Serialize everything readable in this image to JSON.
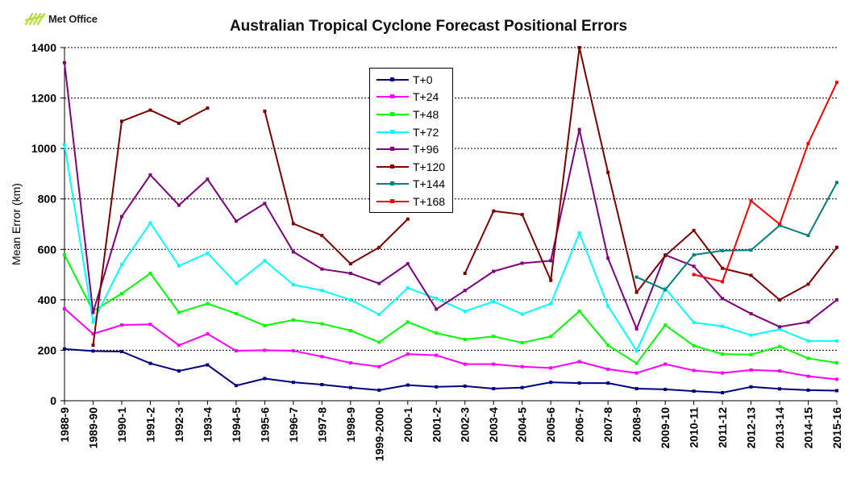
{
  "logo": {
    "text": "Met Office",
    "icon": "met-office-logo-icon",
    "color": "#b5e033"
  },
  "chart_data": {
    "type": "line",
    "title": "Australian Tropical Cyclone Forecast Positional Errors",
    "xlabel": "",
    "ylabel": "Mean Error (km)",
    "ylim": [
      0,
      1400
    ],
    "yticks": [
      "0",
      "200",
      "400",
      "600",
      "800",
      "1000",
      "1200",
      "1400"
    ],
    "grid": "horizontal dashed",
    "legend_position": "top-center",
    "categories": [
      "1988-9",
      "1989-90",
      "1990-1",
      "1991-2",
      "1992-3",
      "1993-4",
      "1994-5",
      "1995-6",
      "1996-7",
      "1997-8",
      "1998-9",
      "1999-2000",
      "2000-1",
      "2001-2",
      "2002-3",
      "2003-4",
      "2004-5",
      "2005-6",
      "2006-7",
      "2007-8",
      "2008-9",
      "2009-10",
      "2010-11",
      "2011-12",
      "2012-13",
      "2013-14",
      "2014-15",
      "2015-16"
    ],
    "series": [
      {
        "name": "T+0",
        "color": "#000080",
        "values": [
          205,
          197,
          195,
          148,
          118,
          142,
          60,
          88,
          73,
          64,
          52,
          42,
          62,
          55,
          58,
          48,
          52,
          73,
          70,
          70,
          48,
          45,
          38,
          32,
          55,
          47,
          42,
          40
        ]
      },
      {
        "name": "T+24",
        "color": "#ff00ff",
        "values": [
          365,
          265,
          300,
          303,
          220,
          265,
          198,
          200,
          198,
          175,
          150,
          135,
          185,
          180,
          145,
          145,
          135,
          130,
          155,
          125,
          110,
          145,
          120,
          110,
          122,
          118,
          97,
          85
        ]
      },
      {
        "name": "T+48",
        "color": "#00ff00",
        "values": [
          578,
          355,
          425,
          505,
          350,
          385,
          345,
          298,
          320,
          305,
          278,
          232,
          312,
          268,
          243,
          255,
          230,
          255,
          355,
          220,
          148,
          300,
          218,
          185,
          183,
          215,
          168,
          150
        ]
      },
      {
        "name": "T+72",
        "color": "#00ffff",
        "values": [
          1015,
          312,
          540,
          705,
          535,
          585,
          465,
          555,
          460,
          437,
          400,
          342,
          447,
          405,
          355,
          393,
          343,
          385,
          665,
          375,
          198,
          445,
          310,
          295,
          260,
          283,
          237,
          237
        ]
      },
      {
        "name": "T+96",
        "color": "#800080",
        "values": [
          1340,
          350,
          730,
          895,
          775,
          878,
          712,
          782,
          590,
          522,
          505,
          465,
          543,
          363,
          437,
          513,
          545,
          555,
          1075,
          565,
          285,
          578,
          533,
          405,
          345,
          293,
          312,
          400
        ]
      },
      {
        "name": "T+120",
        "color": "#800000",
        "values": [
          null,
          220,
          1108,
          1152,
          1100,
          1160,
          null,
          1148,
          702,
          655,
          543,
          608,
          720,
          null,
          505,
          752,
          738,
          477,
          1430,
          905,
          430,
          575,
          675,
          525,
          497,
          400,
          462,
          608
        ]
      },
      {
        "name": "T+144",
        "color": "#008080",
        "values": [
          null,
          null,
          null,
          null,
          null,
          null,
          null,
          null,
          null,
          null,
          null,
          null,
          null,
          null,
          null,
          null,
          null,
          null,
          null,
          null,
          490,
          440,
          578,
          595,
          597,
          695,
          655,
          865
        ]
      },
      {
        "name": "T+168",
        "color": "#ff0000",
        "values": [
          null,
          null,
          null,
          null,
          null,
          null,
          null,
          null,
          null,
          null,
          null,
          null,
          null,
          null,
          null,
          null,
          null,
          null,
          null,
          null,
          null,
          null,
          500,
          472,
          792,
          700,
          1020,
          1262
        ]
      }
    ]
  }
}
